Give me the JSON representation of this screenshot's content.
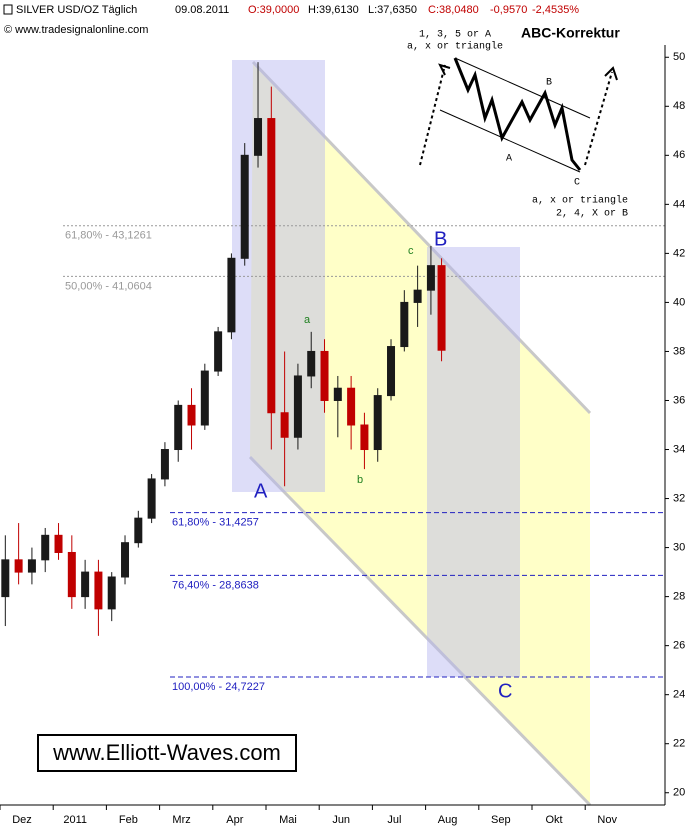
{
  "chart_data": {
    "type": "candlestick",
    "title": "SILVER USD/OZ Täglich",
    "date": "09.08.2011",
    "header_open": "O:39,0000",
    "header_high": "H:39,6130",
    "header_low": "L:37,6350",
    "header_close": "C:38,0480",
    "header_change": "-0,9570",
    "header_change_pct": "-2,4535%",
    "source": "© www.tradesignalonline.com",
    "watermark": "www.Elliott-Waves.com",
    "up_color": "#1a1a1a",
    "down_color": "#c00000",
    "xlim": [
      0,
      12.5
    ],
    "xticks": [
      {
        "value": 0,
        "label": "Dez"
      },
      {
        "value": 1,
        "label": "2011"
      },
      {
        "value": 2,
        "label": "Feb"
      },
      {
        "value": 3,
        "label": "Mrz"
      },
      {
        "value": 4,
        "label": "Apr"
      },
      {
        "value": 5,
        "label": "Mai"
      },
      {
        "value": 6,
        "label": "Jun"
      },
      {
        "value": 7,
        "label": "Jul"
      },
      {
        "value": 8,
        "label": "Aug"
      },
      {
        "value": 9,
        "label": "Sep"
      },
      {
        "value": 10,
        "label": "Okt"
      },
      {
        "value": 11,
        "label": "Nov"
      }
    ],
    "ylim": [
      19.5,
      50.5
    ],
    "yticks": [
      20,
      22,
      24,
      26,
      28,
      30,
      32,
      34,
      36,
      38,
      40,
      42,
      44,
      46,
      48,
      50
    ],
    "x": [
      0.1,
      0.35,
      0.6,
      0.85,
      1.1,
      1.35,
      1.6,
      1.85,
      2.1,
      2.35,
      2.6,
      2.85,
      3.1,
      3.35,
      3.6,
      3.85,
      4.1,
      4.35,
      4.6,
      4.85,
      5.1,
      5.35,
      5.6,
      5.85,
      6.1,
      6.35,
      6.6,
      6.85,
      7.1,
      7.35,
      7.6,
      7.85,
      8.1,
      8.3
    ],
    "open": [
      28,
      29.5,
      29,
      29.5,
      30.5,
      29.8,
      28,
      29,
      27.5,
      28.8,
      30.2,
      31.2,
      32.8,
      34,
      35.8,
      35,
      37.2,
      38.8,
      41.8,
      46,
      47.5,
      35.5,
      34.5,
      37,
      38,
      36,
      36.5,
      35,
      34,
      36.2,
      38.2,
      40,
      40.5,
      41.5
    ],
    "high": [
      30.5,
      31,
      30,
      30.8,
      31,
      30.5,
      29.5,
      29.5,
      29,
      30.5,
      31.5,
      33,
      34.3,
      36,
      36.5,
      37.5,
      39,
      42,
      46.5,
      49.8,
      48.8,
      38,
      37.5,
      38.8,
      38.5,
      37,
      37,
      35.5,
      36.5,
      38.5,
      40.5,
      41.5,
      42.3,
      41.8
    ],
    "low": [
      26.8,
      28.5,
      28.5,
      29,
      29.5,
      27.5,
      27.5,
      26.4,
      27,
      28.5,
      30,
      31,
      32.5,
      33.5,
      34,
      34.8,
      37,
      38.5,
      41.5,
      45.5,
      34,
      32.5,
      34,
      36.5,
      35.5,
      34.5,
      34,
      33.2,
      33.5,
      36,
      38,
      39,
      39.5,
      37.6
    ],
    "close": [
      29.5,
      29,
      29.5,
      30.5,
      29.8,
      28,
      29,
      27.5,
      28.8,
      30.2,
      31.2,
      32.8,
      34,
      35.8,
      35,
      37.2,
      38.8,
      41.8,
      46,
      47.5,
      35.5,
      34.5,
      37,
      38,
      36,
      36.5,
      35,
      34,
      36.2,
      38.2,
      40,
      40.5,
      41.5,
      38.05
    ],
    "levels": [
      {
        "value": 43.1261,
        "label": "61,80% - 43,1261",
        "color": "#999999"
      },
      {
        "value": 41.0604,
        "label": "50,00% - 41,0604",
        "color": "#999999"
      },
      {
        "value": 31.4257,
        "label": "61,80% - 31,4257",
        "color": "#2020c0"
      },
      {
        "value": 28.8638,
        "label": "76,40% - 28,8638",
        "color": "#2020c0"
      },
      {
        "value": 24.7227,
        "label": "100,00% - 24,7227",
        "color": "#2020c0"
      }
    ],
    "wave_labels": [
      "A",
      "B",
      "C",
      "a",
      "b",
      "c"
    ],
    "inset": {
      "title": "ABC-Korrektur",
      "top_note_1": "1, 3, 5 or A",
      "top_note_2": "a, x or triangle",
      "label_a": "A",
      "label_b": "B",
      "label_c": "C",
      "bottom_note_1": "a, x or triangle",
      "bottom_note_2": "2, 4, X or B"
    }
  }
}
